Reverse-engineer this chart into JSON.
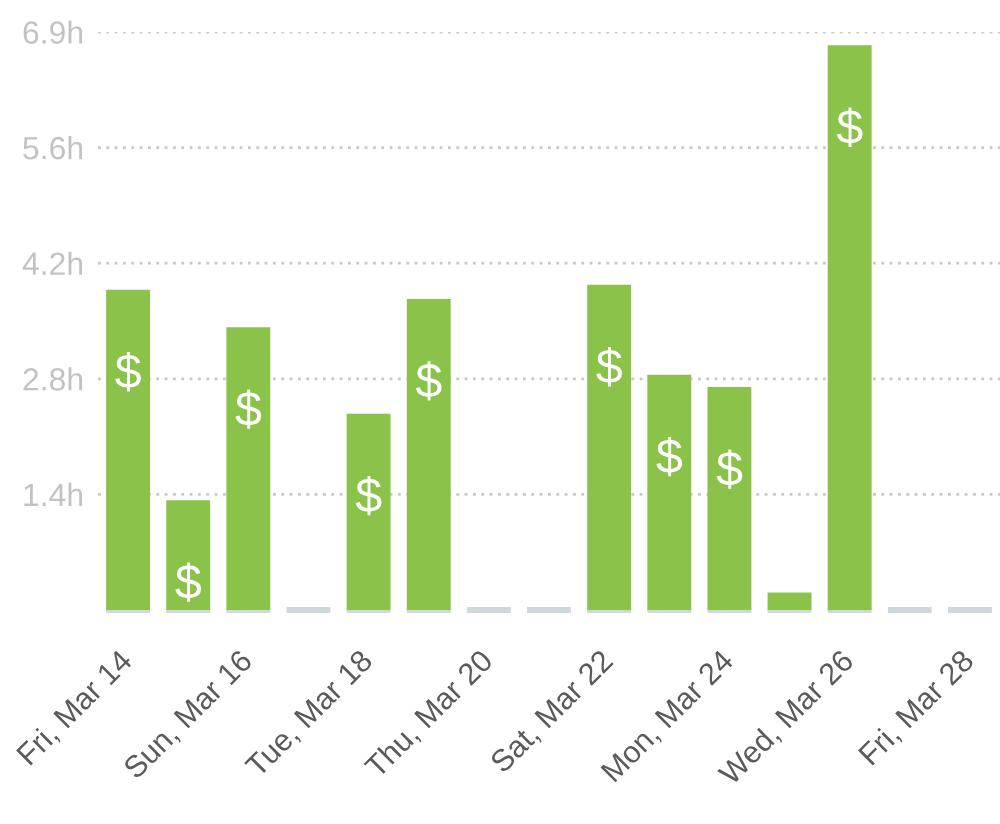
{
  "chart_data": {
    "type": "bar",
    "categories": [
      "Fri, Mar 14",
      null,
      "Sun, Mar 16",
      null,
      "Tue, Mar 18",
      null,
      "Thu, Mar 20",
      null,
      "Sat, Mar 22",
      null,
      "Mon, Mar 24",
      null,
      "Wed, Mar 26",
      null,
      "Fri, Mar 28"
    ],
    "values": [
      3.85,
      1.32,
      3.4,
      0,
      2.36,
      3.74,
      0,
      0,
      3.91,
      2.83,
      2.68,
      0.21,
      6.79,
      0,
      0
    ],
    "colors": [
      "#8bc34a",
      "#8bc34a",
      "#8bc34a",
      "#cfd8dc",
      "#8bc34a",
      "#8bc34a",
      "#cfd8dc",
      "#cfd8dc",
      "#8bc34a",
      "#8bc34a",
      "#8bc34a",
      "#8bc34a",
      "#8bc34a",
      "#cfd8dc",
      "#cfd8dc"
    ],
    "ylim": [
      0,
      6.95
    ],
    "yticks": [
      {
        "value": 1.39,
        "label": "1.4h"
      },
      {
        "value": 2.78,
        "label": "2.8h"
      },
      {
        "value": 4.17,
        "label": "4.2h"
      },
      {
        "value": 5.56,
        "label": "5.6h"
      },
      {
        "value": 6.95,
        "label": "6.9h"
      }
    ],
    "grid": "y"
  }
}
